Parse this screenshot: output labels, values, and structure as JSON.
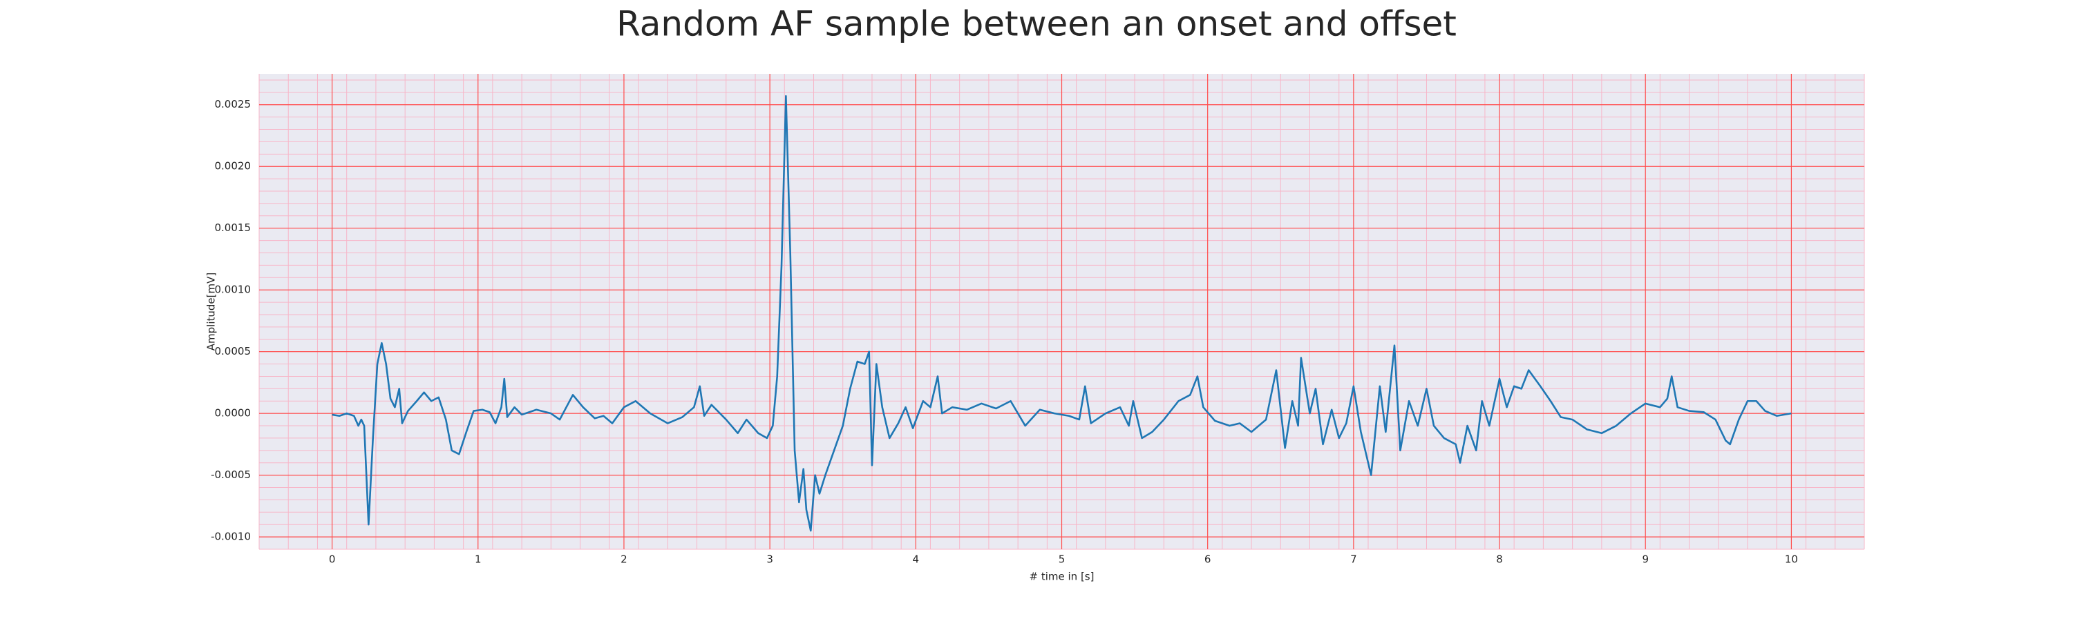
{
  "chart_data": {
    "type": "line",
    "title": "Random AF sample between an onset and offset",
    "x_label": "# time in [s]",
    "y_label": "Amplitude[mV]",
    "color": "#1f77b4",
    "background": "#eaeaf2",
    "grid": true,
    "grid_color": "#ff4d4d",
    "minor_grid": {
      "x_step": 0.2,
      "y_step": 0.0001,
      "color": "#f7b6c8"
    },
    "xlim": [
      -0.5,
      10.5
    ],
    "ylim": [
      -0.0011,
      0.00275
    ],
    "xticks": [
      0,
      1,
      2,
      3,
      4,
      5,
      6,
      7,
      8,
      9,
      10
    ],
    "yticks": [
      {
        "value": -0.001,
        "label": "-0.0010"
      },
      -0.0005,
      {
        "value": 0,
        "label": "0.0000"
      },
      0.0005,
      {
        "value": 0.001,
        "label": "0.0010"
      },
      0.0015,
      {
        "value": 0.002,
        "label": "0.0020"
      },
      0.0025
    ],
    "x": [
      0,
      0.05,
      0.1,
      0.15,
      0.18,
      0.2,
      0.22,
      0.25,
      0.28,
      0.31,
      0.34,
      0.37,
      0.4,
      0.43,
      0.46,
      0.48,
      0.52,
      0.58,
      0.63,
      0.68,
      0.73,
      0.78,
      0.82,
      0.87,
      0.92,
      0.97,
      1.03,
      1.08,
      1.12,
      1.16,
      1.18,
      1.2,
      1.25,
      1.3,
      1.4,
      1.5,
      1.56,
      1.65,
      1.72,
      1.8,
      1.86,
      1.92,
      2.0,
      2.08,
      2.18,
      2.3,
      2.4,
      2.48,
      2.52,
      2.55,
      2.6,
      2.7,
      2.78,
      2.84,
      2.92,
      2.98,
      3.02,
      3.05,
      3.08,
      3.11,
      3.14,
      3.17,
      3.2,
      3.23,
      3.25,
      3.28,
      3.31,
      3.34,
      3.38,
      3.44,
      3.5,
      3.55,
      3.6,
      3.65,
      3.68,
      3.7,
      3.73,
      3.77,
      3.82,
      3.88,
      3.93,
      3.98,
      4.05,
      4.1,
      4.15,
      4.18,
      4.25,
      4.35,
      4.45,
      4.55,
      4.65,
      4.75,
      4.85,
      4.95,
      5.05,
      5.12,
      5.16,
      5.2,
      5.3,
      5.4,
      5.46,
      5.49,
      5.55,
      5.62,
      5.7,
      5.8,
      5.88,
      5.93,
      5.97,
      6.05,
      6.15,
      6.22,
      6.3,
      6.4,
      6.47,
      6.53,
      6.58,
      6.62,
      6.64,
      6.7,
      6.74,
      6.79,
      6.85,
      6.9,
      6.95,
      7.0,
      7.05,
      7.12,
      7.18,
      7.22,
      7.28,
      7.32,
      7.38,
      7.44,
      7.5,
      7.55,
      7.62,
      7.7,
      7.73,
      7.78,
      7.84,
      7.88,
      7.93,
      8.0,
      8.05,
      8.1,
      8.15,
      8.2,
      8.28,
      8.35,
      8.42,
      8.5,
      8.6,
      8.7,
      8.8,
      8.9,
      9.0,
      9.1,
      9.15,
      9.18,
      9.22,
      9.3,
      9.4,
      9.48,
      9.55,
      9.58,
      9.64,
      9.7,
      9.76,
      9.82,
      9.9,
      10.0
    ],
    "values": [
      -1e-05,
      -2e-05,
      0,
      -2e-05,
      -0.0001,
      -5e-05,
      -0.0001,
      -0.0009,
      -0.0002,
      0.0004,
      0.00057,
      0.0004,
      0.00012,
      5e-05,
      0.0002,
      -8e-05,
      2e-05,
      0.0001,
      0.00017,
      0.0001,
      0.00013,
      -5e-05,
      -0.0003,
      -0.00033,
      -0.00015,
      2e-05,
      3e-05,
      1e-05,
      -8e-05,
      5e-05,
      0.00028,
      -3e-05,
      5e-05,
      -1e-05,
      3e-05,
      0,
      -5e-05,
      0.00015,
      5e-05,
      -4e-05,
      -2e-05,
      -8e-05,
      5e-05,
      0.0001,
      0,
      -8e-05,
      -3e-05,
      5e-05,
      0.00022,
      -2e-05,
      7e-05,
      -5e-05,
      -0.00016,
      -5e-05,
      -0.00016,
      -0.0002,
      -0.0001,
      0.0003,
      0.0012,
      0.00257,
      0.0013,
      -0.0003,
      -0.00072,
      -0.00045,
      -0.00078,
      -0.00095,
      -0.0005,
      -0.00065,
      -0.0005,
      -0.0003,
      -0.0001,
      0.0002,
      0.00042,
      0.0004,
      0.0005,
      -0.00042,
      0.0004,
      5e-05,
      -0.0002,
      -8e-05,
      5e-05,
      -0.00012,
      0.0001,
      5e-05,
      0.0003,
      0,
      5e-05,
      3e-05,
      8e-05,
      4e-05,
      0.0001,
      -0.0001,
      3e-05,
      0,
      -2e-05,
      -5e-05,
      0.00022,
      -8e-05,
      0,
      5e-05,
      -0.0001,
      0.0001,
      -0.0002,
      -0.00015,
      -5e-05,
      0.0001,
      0.00015,
      0.0003,
      5e-05,
      -6e-05,
      -0.0001,
      -8e-05,
      -0.00015,
      -5e-05,
      0.00035,
      -0.00028,
      0.0001,
      -0.0001,
      0.00045,
      0,
      0.0002,
      -0.00025,
      3e-05,
      -0.0002,
      -8e-05,
      0.00022,
      -0.00015,
      -0.0005,
      0.00022,
      -0.00015,
      0.00055,
      -0.0003,
      0.0001,
      -0.0001,
      0.0002,
      -0.0001,
      -0.0002,
      -0.00025,
      -0.0004,
      -0.0001,
      -0.0003,
      0.0001,
      -0.0001,
      0.00028,
      5e-05,
      0.00022,
      0.0002,
      0.00035,
      0.00022,
      0.0001,
      -3e-05,
      -5e-05,
      -0.00013,
      -0.00016,
      -0.0001,
      0,
      8e-05,
      5e-05,
      0.00012,
      0.0003,
      5e-05,
      2e-05,
      1e-05,
      -5e-05,
      -0.00022,
      -0.00025,
      -5e-05,
      0.0001,
      0.0001,
      2e-05,
      -2e-05,
      0
    ]
  }
}
